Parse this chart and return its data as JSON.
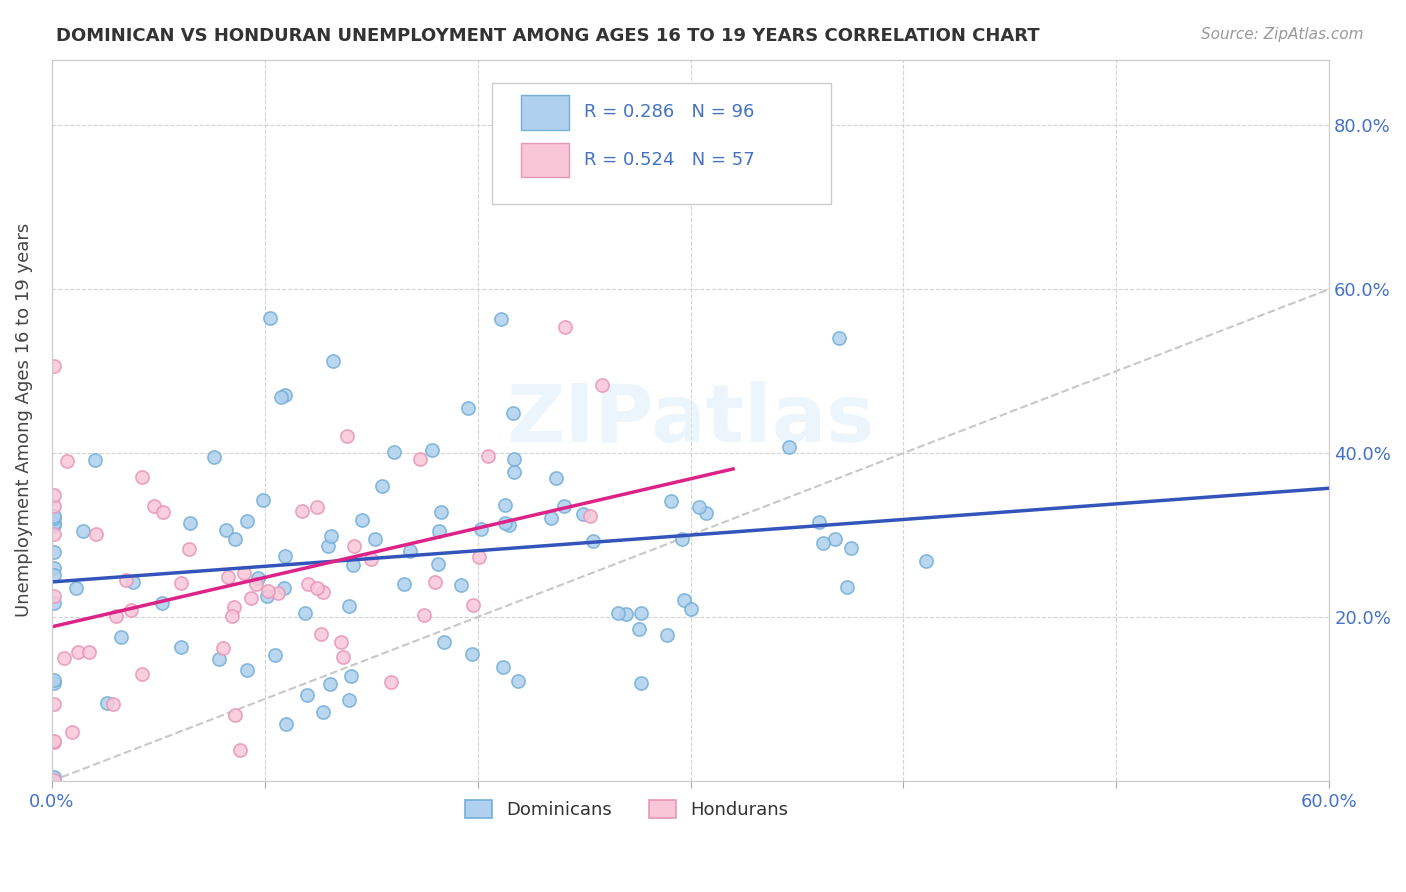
{
  "title": "DOMINICAN VS HONDURAN UNEMPLOYMENT AMONG AGES 16 TO 19 YEARS CORRELATION CHART",
  "source": "Source: ZipAtlas.com",
  "ylabel": "Unemployment Among Ages 16 to 19 years",
  "xlim": [
    0.0,
    0.6
  ],
  "ylim": [
    0.0,
    0.88
  ],
  "ytick_labels_right": [
    "20.0%",
    "40.0%",
    "60.0%",
    "80.0%"
  ],
  "yticks_right": [
    0.2,
    0.4,
    0.6,
    0.8
  ],
  "dominican_fill_color": "#afd0ee",
  "dominican_edge_color": "#74afd8",
  "honduran_fill_color": "#f9c6d8",
  "honduran_edge_color": "#e896b8",
  "trend_line_color_dom": "#3355bb",
  "trend_line_color_hon": "#dd2288",
  "diagonal_color": "#c8c8c8",
  "R_dom": 0.286,
  "N_dom": 96,
  "R_hon": 0.524,
  "N_hon": 57,
  "watermark": "ZIPatlas",
  "background_color": "#ffffff",
  "grid_color": "#d3d3d3",
  "axis_label_color": "#4472c4",
  "text_color": "#4472c4"
}
